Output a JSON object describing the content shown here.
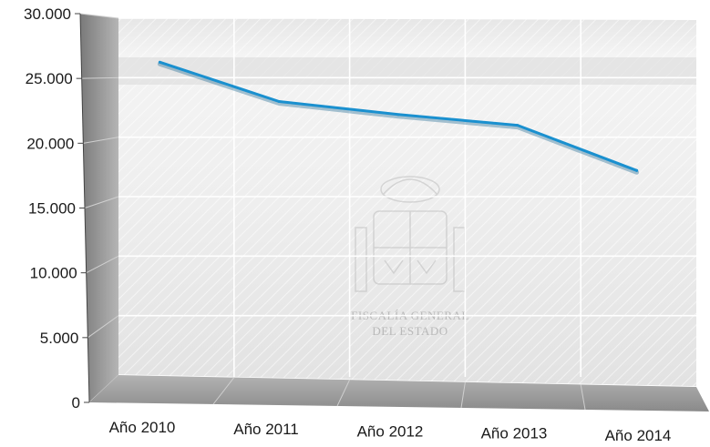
{
  "chart_data": {
    "type": "line",
    "title": "",
    "xlabel": "",
    "ylabel": "",
    "categories": [
      "Año 2010",
      "Año 2011",
      "Año 2012",
      "Año 2013",
      "Año 2014"
    ],
    "series": [
      {
        "values": [
          26300,
          23000,
          21900,
          21000,
          17200
        ]
      }
    ],
    "ylim": [
      0,
      30000
    ],
    "yticks": [
      "0",
      "5.000",
      "10.000",
      "15.000",
      "20.000",
      "25.000",
      "30.000"
    ],
    "grid": true,
    "legend": "none",
    "colors": {
      "line": "#1a90cf",
      "grid": "#ffffff",
      "wall": "#ececec",
      "floor": "#9a9a9a",
      "side_wall": "#8c8c8c"
    }
  },
  "watermark": {
    "line1": "FISCALÍA GENERAL",
    "line2": "DEL ESTADO"
  }
}
